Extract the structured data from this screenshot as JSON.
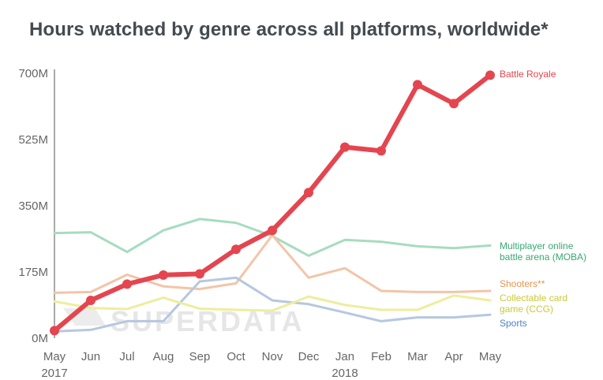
{
  "chart_data": {
    "type": "line",
    "title": "Hours watched by genre across all platforms, worldwide*",
    "xlabel": "",
    "ylabel": "",
    "x": [
      "May",
      "Jun",
      "Jul",
      "Aug",
      "Sep",
      "Oct",
      "Nov",
      "Dec",
      "Jan",
      "Feb",
      "Mar",
      "Apr",
      "May"
    ],
    "year_labels": [
      {
        "index": 0,
        "label": "2017"
      },
      {
        "index": 8,
        "label": "2018"
      }
    ],
    "y_ticks": [
      {
        "value": 0,
        "label": "0M"
      },
      {
        "value": 175,
        "label": "175M"
      },
      {
        "value": 350,
        "label": "350M"
      },
      {
        "value": 525,
        "label": "525M"
      },
      {
        "value": 700,
        "label": "700M"
      }
    ],
    "ylim": [
      0,
      700
    ],
    "grid": false,
    "legend": "right",
    "watermark": "SUPERDATA",
    "series": [
      {
        "name": "Multiplayer online battle arena (MOBA)",
        "color": "#a6dcc0",
        "width": 3,
        "values": [
          278,
          280,
          228,
          285,
          315,
          305,
          270,
          218,
          260,
          255,
          243,
          238,
          245
        ]
      },
      {
        "name": "Shooters**",
        "color": "#f2c5a8",
        "width": 3,
        "values": [
          120,
          122,
          168,
          137,
          130,
          145,
          272,
          160,
          185,
          125,
          122,
          122,
          125
        ]
      },
      {
        "name": "Sports",
        "color": "#b6c7e0",
        "width": 3,
        "values": [
          18,
          22,
          45,
          45,
          150,
          160,
          100,
          90,
          68,
          45,
          55,
          55,
          62
        ]
      },
      {
        "name": "Collectable card game (CCG)",
        "color": "#eded9e",
        "width": 3,
        "values": [
          97,
          80,
          77,
          107,
          78,
          75,
          73,
          110,
          88,
          75,
          75,
          113,
          100
        ]
      },
      {
        "name": "Battle Royale",
        "color": "#e4454f",
        "width": 6,
        "markers": true,
        "values": [
          20,
          100,
          143,
          167,
          170,
          235,
          285,
          385,
          505,
          495,
          670,
          620,
          695
        ]
      }
    ]
  }
}
